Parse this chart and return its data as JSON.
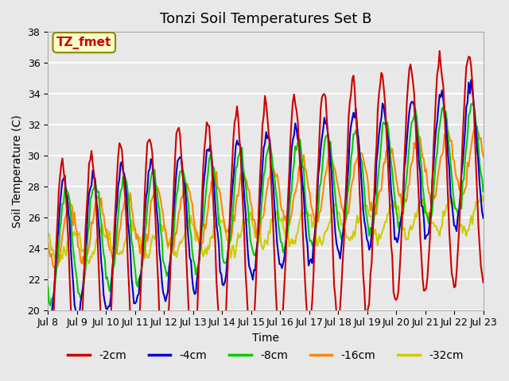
{
  "title": "Tonzi Soil Temperatures Set B",
  "xlabel": "Time",
  "ylabel": "Soil Temperature (C)",
  "ylim": [
    20,
    38
  ],
  "x_tick_labels": [
    "Jul 8",
    "Jul 9",
    "Jul 10",
    "Jul 11",
    "Jul 12",
    "Jul 13",
    "Jul 14",
    "Jul 15",
    "Jul 16",
    "Jul 17",
    "Jul 18",
    "Jul 19",
    "Jul 20",
    "Jul 21",
    "Jul 22",
    "Jul 23"
  ],
  "series_colors": [
    "#cc0000",
    "#0000cc",
    "#00cc00",
    "#ff8800",
    "#cccc00"
  ],
  "series_labels": [
    "-2cm",
    "-4cm",
    "-8cm",
    "-16cm",
    "-32cm"
  ],
  "series_linewidths": [
    1.5,
    1.5,
    1.5,
    1.5,
    1.5
  ],
  "annotation_text": "TZ_fmet",
  "annotation_color": "#cc0000",
  "annotation_bg": "#ffffcc",
  "annotation_border": "#888800",
  "plot_bg_color": "#e8e8e8",
  "grid_color": "#ffffff",
  "title_fontsize": 13,
  "axis_fontsize": 10,
  "tick_fontsize": 9,
  "legend_fontsize": 10,
  "days": 15,
  "n_points": 360,
  "base_temp_2cm": 22.0,
  "trend_per_day_2cm": 0.5,
  "amplitude_2cm": 7.5,
  "base_temp_4cm": 23.5,
  "trend_per_day_4cm": 0.45,
  "amplitude_4cm": 4.5,
  "base_temp_8cm": 24.0,
  "trend_per_day_8cm": 0.4,
  "amplitude_8cm": 3.5,
  "base_temp_16cm": 24.5,
  "trend_per_day_16cm": 0.35,
  "amplitude_16cm": 2.0,
  "base_temp_32cm": 24.0,
  "trend_per_day_32cm": 0.15,
  "amplitude_32cm": 1.0
}
